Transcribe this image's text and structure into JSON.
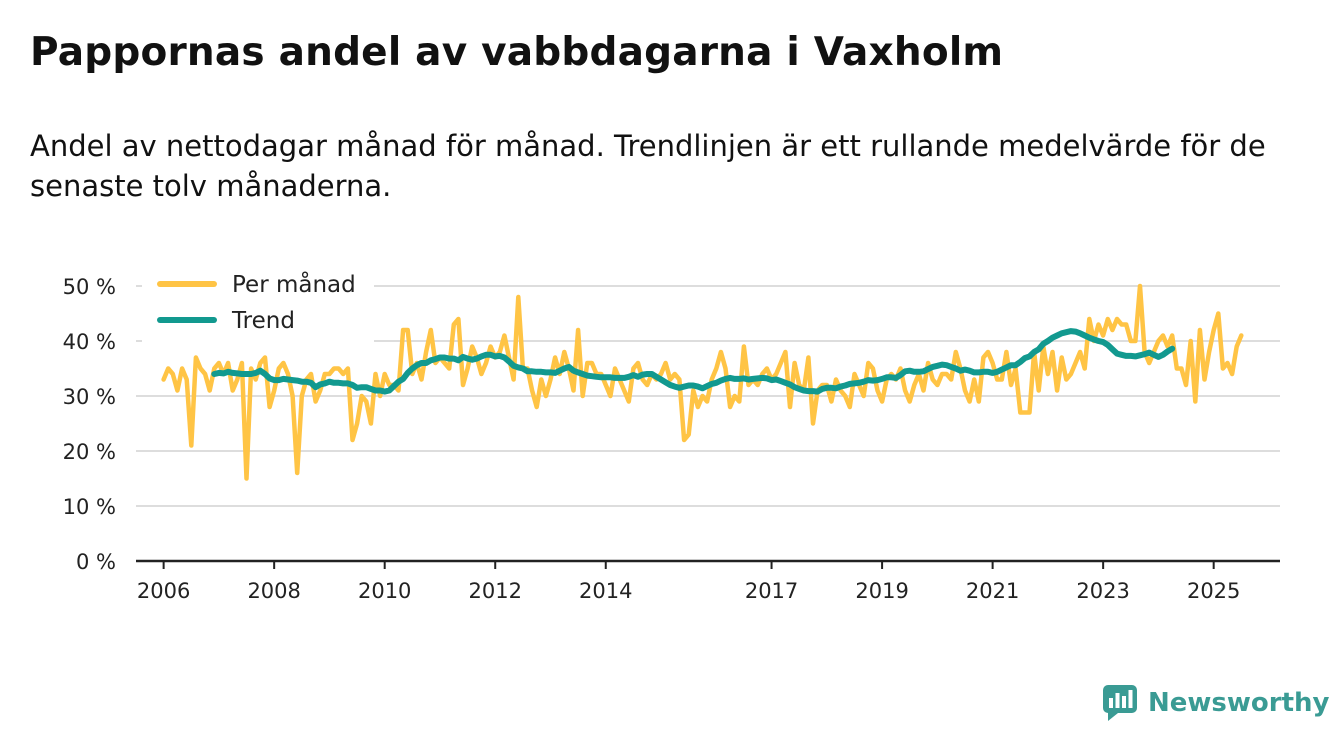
{
  "header": {
    "title": "Pappornas andel av vabbdagarna i Vaxholm",
    "subtitle": "Andel av nettodagar månad för månad. Trendlinjen är ett rullande medelvärde för de senaste tolv månaderna."
  },
  "brand": {
    "name": "Newsworthy",
    "icon": "newsworthy-logo-icon"
  },
  "colors": {
    "monthly": "#ffc445",
    "trend": "#12998f",
    "grid": "#dddddd",
    "axis": "#222222"
  },
  "chart_data": {
    "type": "line",
    "title": "Pappornas andel av vabbdagarna i Vaxholm",
    "subtitle": "Andel av nettodagar månad för månad. Trendlinjen är ett rullande medelvärde för de senaste tolv månaderna.",
    "xlabel": "",
    "ylabel": "",
    "x_unit": "year (decimal)",
    "xlim": [
      2005.5,
      2026.2
    ],
    "ylim": [
      0,
      50
    ],
    "y_ticks": [
      0,
      10,
      20,
      30,
      40,
      50
    ],
    "y_tick_labels": [
      "0 %",
      "10 %",
      "20 %",
      "30 %",
      "40 %",
      "50 %"
    ],
    "x_ticks": [
      2006,
      2008,
      2010,
      2012,
      2014,
      2017,
      2019,
      2021,
      2023,
      2025
    ],
    "x_tick_labels": [
      "2006",
      "2008",
      "2010",
      "2012",
      "2014",
      "2017",
      "2019",
      "2021",
      "2023",
      "2025"
    ],
    "grid": true,
    "legend_position": "top-left",
    "series": [
      {
        "name": "Per månad",
        "color": "#ffc445",
        "start": 2006.0,
        "step": 0.0833333,
        "values": [
          33,
          35,
          34,
          31,
          35,
          33,
          21,
          37,
          35,
          34,
          31,
          35,
          36,
          34,
          36,
          31,
          33,
          36,
          15,
          35,
          33,
          36,
          37,
          28,
          31,
          35,
          36,
          34,
          30,
          16,
          30,
          33,
          34,
          29,
          31,
          34,
          34,
          35,
          35,
          34,
          35,
          22,
          25,
          30,
          29,
          25,
          34,
          30,
          34,
          32,
          32,
          31,
          42,
          42,
          34,
          36,
          33,
          38,
          42,
          36,
          37,
          36,
          35,
          43,
          44,
          32,
          35,
          39,
          37,
          34,
          36,
          39,
          37,
          38,
          41,
          37,
          33,
          48,
          35,
          35,
          31,
          28,
          33,
          30,
          33,
          37,
          34,
          38,
          35,
          31,
          42,
          30,
          36,
          36,
          34,
          34,
          32,
          30,
          35,
          33,
          31,
          29,
          35,
          36,
          33,
          32,
          34,
          33,
          34,
          36,
          33,
          34,
          33,
          22,
          23,
          31,
          28,
          30,
          29,
          33,
          35,
          38,
          35,
          28,
          30,
          29,
          39,
          32,
          33,
          32,
          34,
          35,
          33,
          34,
          36,
          38,
          28,
          36,
          32,
          31,
          37,
          25,
          31,
          32,
          32,
          29,
          33,
          31,
          30,
          28,
          34,
          32,
          30,
          36,
          35,
          31,
          29,
          33,
          34,
          33,
          35,
          31,
          29,
          32,
          34,
          31,
          36,
          33,
          32,
          34,
          34,
          33,
          38,
          35,
          31,
          29,
          33,
          29,
          37,
          38,
          36,
          33,
          33,
          38,
          32,
          35,
          27,
          27,
          27,
          38,
          31,
          39,
          34,
          38,
          31,
          37,
          33,
          34,
          36,
          38,
          35,
          44,
          40,
          43,
          41,
          44,
          42,
          44,
          43,
          43,
          40,
          40,
          50,
          38,
          36,
          38,
          40,
          41,
          39,
          41,
          35,
          35,
          32,
          40,
          29,
          42,
          33,
          38,
          42,
          45,
          35,
          36,
          34,
          39,
          41
        ]
      },
      {
        "name": "Trend",
        "color": "#12998f",
        "start": 2006.9167,
        "step": 0.0833333,
        "values": [
          34.0,
          34.2,
          34.1,
          34.4,
          34.2,
          34.1,
          34.0,
          34.0,
          34.0,
          34.2,
          34.6,
          34.0,
          33.2,
          32.9,
          32.9,
          33.1,
          33.0,
          32.9,
          32.8,
          32.6,
          32.6,
          32.4,
          31.6,
          32.1,
          32.3,
          32.6,
          32.4,
          32.4,
          32.3,
          32.3,
          32.0,
          31.5,
          31.6,
          31.6,
          31.3,
          31.0,
          31.0,
          30.8,
          31.0,
          31.8,
          32.6,
          33.1,
          34.2,
          35.0,
          35.6,
          36.0,
          36.0,
          36.5,
          36.7,
          37.0,
          37.0,
          36.8,
          36.8,
          36.5,
          37.1,
          36.8,
          36.6,
          36.8,
          37.2,
          37.5,
          37.5,
          37.2,
          37.3,
          37.0,
          36.3,
          35.5,
          35.2,
          35.0,
          34.5,
          34.5,
          34.4,
          34.4,
          34.3,
          34.3,
          34.2,
          34.6,
          35.0,
          35.3,
          34.6,
          34.3,
          34.0,
          33.7,
          33.6,
          33.5,
          33.4,
          33.4,
          33.4,
          33.3,
          33.3,
          33.3,
          33.5,
          33.8,
          33.5,
          33.9,
          34.0,
          34.0,
          33.5,
          33.0,
          32.5,
          32.0,
          31.7,
          31.5,
          31.7,
          31.9,
          31.9,
          31.7,
          31.4,
          31.8,
          32.2,
          32.4,
          32.8,
          33.1,
          33.3,
          33.1,
          33.1,
          33.2,
          33.0,
          33.1,
          33.2,
          33.3,
          33.2,
          32.9,
          33.0,
          32.7,
          32.4,
          32.1,
          31.6,
          31.3,
          31.0,
          30.9,
          30.9,
          30.8,
          31.3,
          31.5,
          31.5,
          31.4,
          31.7,
          31.9,
          32.2,
          32.3,
          32.4,
          32.6,
          32.9,
          32.8,
          32.9,
          33.1,
          33.4,
          33.4,
          33.3,
          33.8,
          34.5,
          34.6,
          34.4,
          34.4,
          34.5,
          34.9,
          35.3,
          35.5,
          35.7,
          35.6,
          35.3,
          35.0,
          34.6,
          34.8,
          34.6,
          34.3,
          34.3,
          34.4,
          34.4,
          34.2,
          34.4,
          34.8,
          35.2,
          35.6,
          35.6,
          36.2,
          36.9,
          37.2,
          38.0,
          38.5,
          39.5,
          40.0,
          40.6,
          41.0,
          41.4,
          41.6,
          41.8,
          41.7,
          41.4,
          41.0,
          40.6,
          40.3,
          40.0,
          39.8,
          39.3,
          38.5,
          37.7,
          37.5,
          37.3,
          37.3,
          37.2,
          37.4,
          37.6,
          37.9,
          37.5,
          37.1,
          37.5,
          38.1,
          38.6
        ]
      }
    ]
  }
}
